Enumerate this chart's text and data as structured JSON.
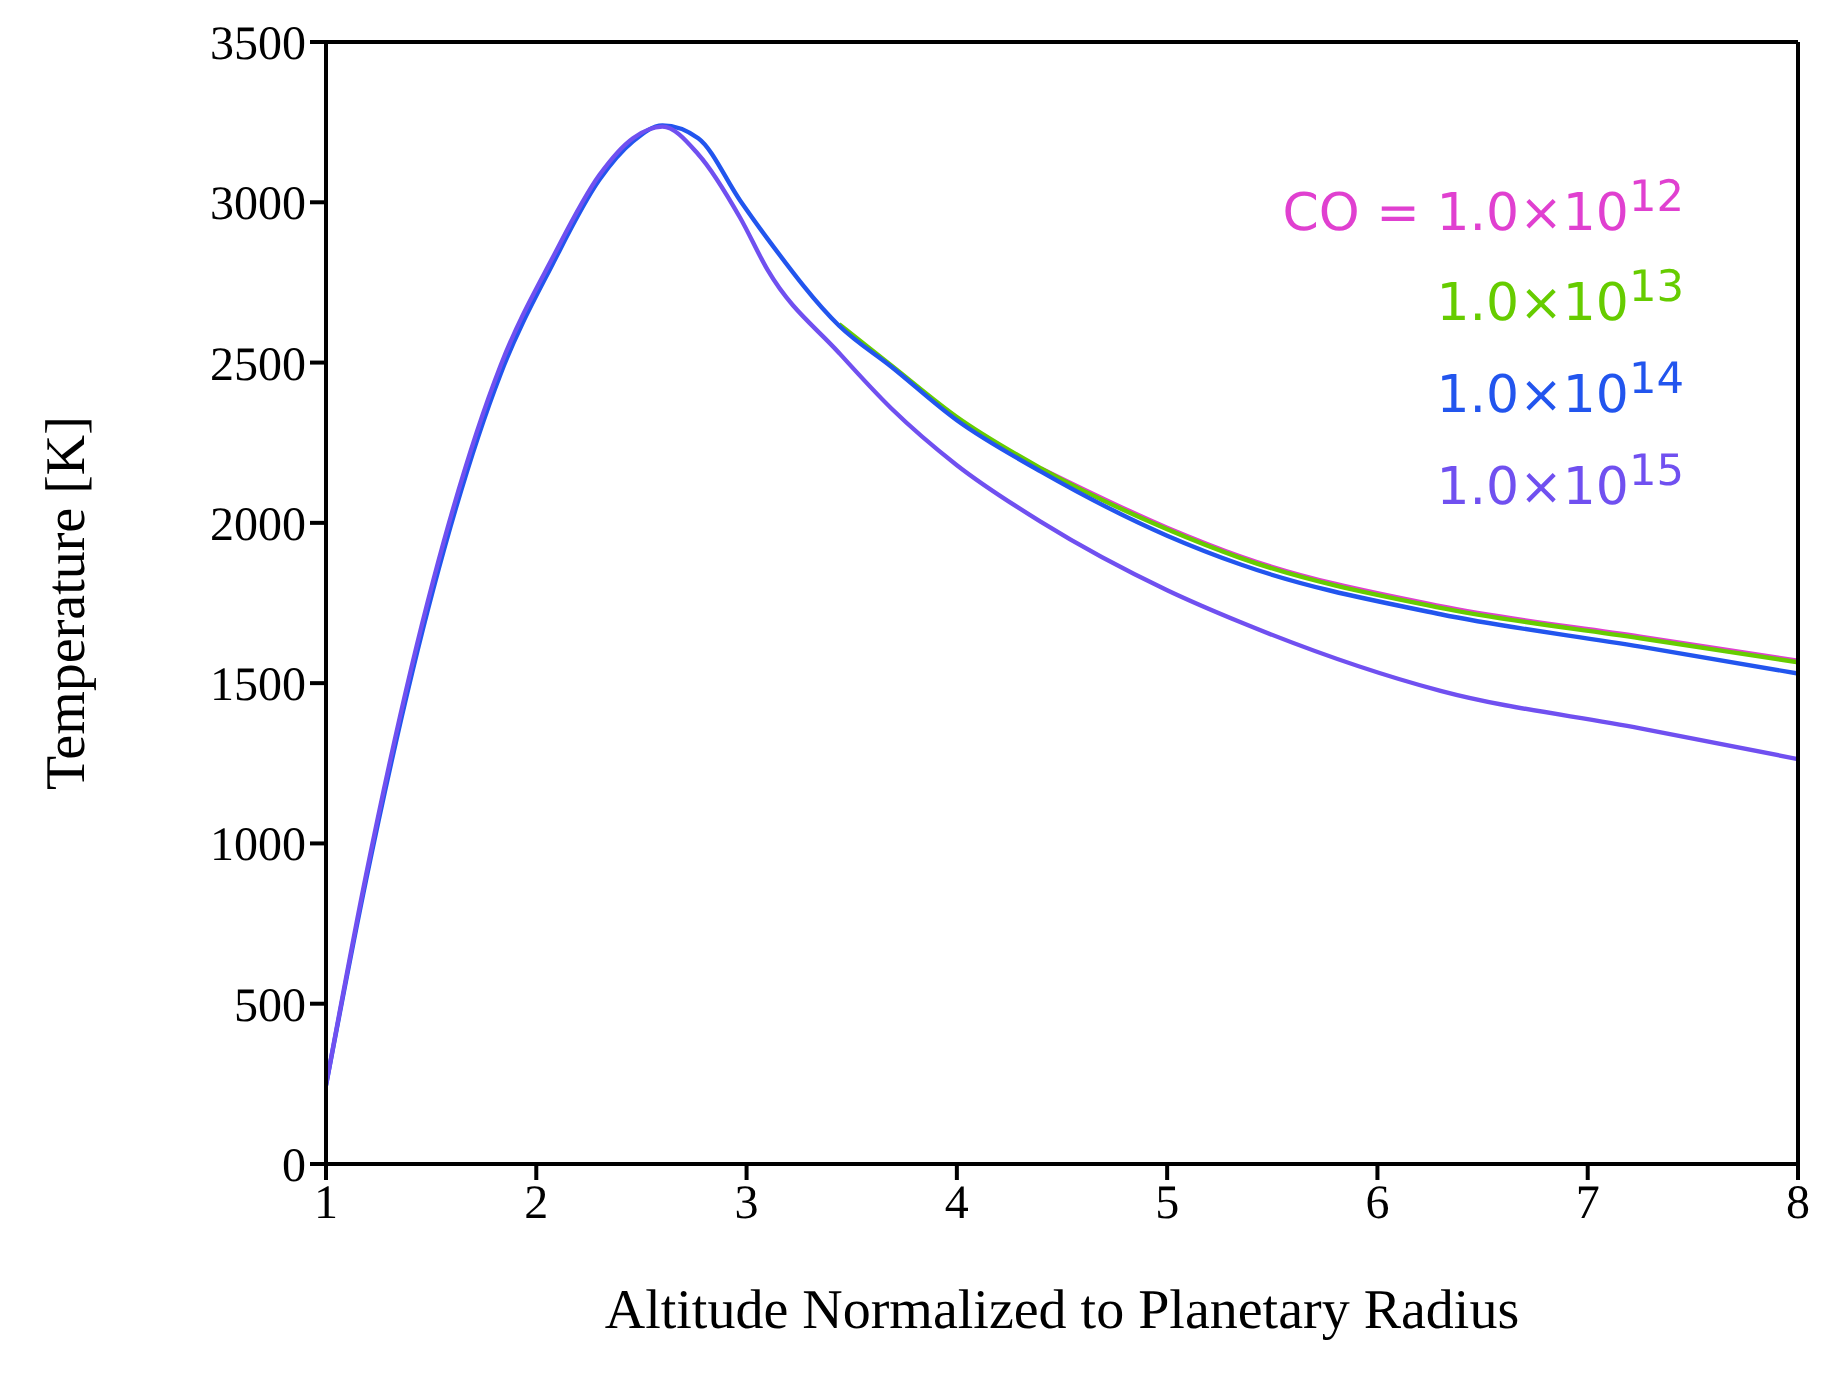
{
  "chart_data": {
    "type": "line",
    "xlabel": "Altitude Normalized to Planetary Radius",
    "ylabel": "Temperature [K]",
    "x": [
      1,
      1.19,
      1.51,
      1.83,
      2.08,
      2.3,
      2.46,
      2.6,
      2.77,
      2.97,
      3.1,
      3.44,
      3.69,
      4,
      4.4,
      5,
      5.35,
      6.3,
      7.25,
      8
    ],
    "series": [
      {
        "name": "CO = 1.0×10$^{12}$",
        "color": "#e040d0",
        "values": [
          null,
          null,
          null,
          null,
          null,
          null,
          null,
          null,
          null,
          null,
          null,
          null,
          null,
          null,
          2170,
          1985,
          1895,
          1740,
          1645,
          1570
        ]
      },
      {
        "name": "1.0×10$^{13}$",
        "color": "#66cc00",
        "values": [
          null,
          null,
          null,
          null,
          null,
          null,
          null,
          null,
          null,
          null,
          null,
          2620,
          2490,
          2330,
          2170,
          1980,
          1890,
          1735,
          1640,
          1565
        ]
      },
      {
        "name": "1.0×10$^{14}$",
        "color": "#2255ee",
        "values": [
          245,
          884,
          1793,
          2464,
          2810,
          3070,
          3190,
          3240,
          3200,
          3005,
          2886,
          2615,
          2486,
          2320,
          2160,
          1960,
          1870,
          1715,
          1614,
          1530
        ]
      },
      {
        "name": "1.0×10$^{15}$",
        "color": "#7050f0",
        "values": [
          245,
          900,
          1820,
          2490,
          2830,
          3085,
          3200,
          3236,
          3150,
          2951,
          2789,
          2530,
          2356,
          2180,
          2003,
          1790,
          1690,
          1476,
          1359,
          1263
        ]
      }
    ],
    "xlim": [
      1,
      8
    ],
    "xticks": [
      1,
      2,
      3,
      4,
      5,
      6,
      7,
      8
    ],
    "ylim": [
      0,
      3500
    ],
    "yticks": [
      0,
      500,
      1000,
      1500,
      2000,
      2500,
      3000,
      3500
    ],
    "grid": false,
    "legend": "top right",
    "marker": "none",
    "line_style": "solid"
  }
}
